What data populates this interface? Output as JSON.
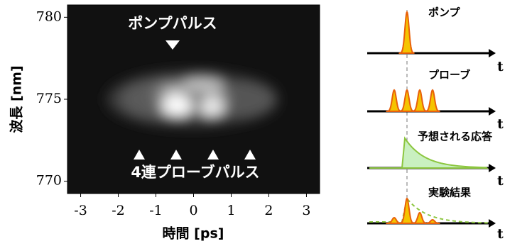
{
  "chart_data": {
    "type": "heatmap",
    "xlabel": "時間 [ps]",
    "ylabel": "波長 [nm]",
    "xlim": [
      -3.35,
      3.35
    ],
    "xticks": [
      -3,
      -2,
      -1,
      0,
      1,
      2,
      3
    ],
    "ylim": [
      769.25,
      780.75
    ],
    "yticks": [
      770,
      775,
      780
    ],
    "annotations": [
      "ポンプパルス",
      "4連プローブパルス"
    ]
  },
  "schematic": {
    "axis_label": "t",
    "panels": [
      "ポンプ",
      "プローブ",
      "予想される応答",
      "実験結果"
    ]
  }
}
